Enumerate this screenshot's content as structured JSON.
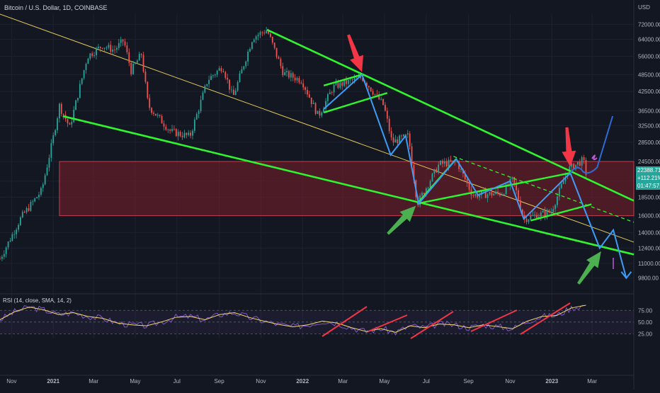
{
  "header": {
    "title": "Bitcoin / U.S. Dollar, 1D, COINBASE",
    "currency": "USD"
  },
  "price_tag": {
    "price": "22388.71",
    "change": "+112.21%",
    "countdown": "01:47:57"
  },
  "rsi_label": "RSI (14, close, SMA, 14, 2)",
  "colors": {
    "background": "#131722",
    "up": "#26a69a",
    "down": "#ef5350",
    "trend_green": "#2ef52e",
    "projection_blue": "#3d9cf5",
    "arrow_red": "#f23645",
    "arrow_green": "#4caf50",
    "zone": "#7d1f2a",
    "rsi": "#7e57c2",
    "rsi_ma": "#f5d76e"
  },
  "chart_data": [
    {
      "type": "candlestick",
      "title": "Bitcoin / U.S. Dollar, 1D, COINBASE",
      "y_scale": "log",
      "y_unit": "USD",
      "y_ticks": [
        72000,
        64000,
        56000,
        48500,
        42500,
        36500,
        32500,
        28500,
        24500,
        21000,
        18500,
        16000,
        14000,
        12400,
        11000,
        9800
      ],
      "x_ticks": [
        "Nov",
        "2021",
        "Mar",
        "May",
        "Jul",
        "Sep",
        "Nov",
        "2022",
        "Mar",
        "May",
        "Jul",
        "Sep",
        "Nov",
        "2023",
        "Mar"
      ],
      "x_range": [
        "2020-10-15",
        "2023-05-01"
      ],
      "y_range": [
        9000,
        78000
      ],
      "current_price": 22388.71,
      "price_path": [
        [
          "2020-10-15",
          11400
        ],
        [
          "2020-11-15",
          15800
        ],
        [
          "2020-12-15",
          19500
        ],
        [
          "2020-12-31",
          28900
        ],
        [
          "2021-01-10",
          38000
        ],
        [
          "2021-01-25",
          32000
        ],
        [
          "2021-02-20",
          56000
        ],
        [
          "2021-03-14",
          61000
        ],
        [
          "2021-03-31",
          58800
        ],
        [
          "2021-04-14",
          63500
        ],
        [
          "2021-04-25",
          50000
        ],
        [
          "2021-05-10",
          57000
        ],
        [
          "2021-05-20",
          38000
        ],
        [
          "2021-06-22",
          31000
        ],
        [
          "2021-07-20",
          29800
        ],
        [
          "2021-08-15",
          46500
        ],
        [
          "2021-09-06",
          51800
        ],
        [
          "2021-09-21",
          40500
        ],
        [
          "2021-10-20",
          65000
        ],
        [
          "2021-11-10",
          68900
        ],
        [
          "2021-12-04",
          49000
        ],
        [
          "2021-12-31",
          46300
        ],
        [
          "2022-01-24",
          35000
        ],
        [
          "2022-02-15",
          44000
        ],
        [
          "2022-03-29",
          47500
        ],
        [
          "2022-04-30",
          38000
        ],
        [
          "2022-05-12",
          28500
        ],
        [
          "2022-06-05",
          30000
        ],
        [
          "2022-06-18",
          17600
        ],
        [
          "2022-07-20",
          24000
        ],
        [
          "2022-08-15",
          24400
        ],
        [
          "2022-09-07",
          18800
        ],
        [
          "2022-10-20",
          19100
        ],
        [
          "2022-11-05",
          21300
        ],
        [
          "2022-11-21",
          15600
        ],
        [
          "2022-12-31",
          16550
        ],
        [
          "2023-01-25",
          23000
        ],
        [
          "2023-02-16",
          24800
        ],
        [
          "2023-02-20",
          22388.71
        ]
      ],
      "support_zone": {
        "from": 16000,
        "to": 24500
      },
      "annotations": {
        "downtrend_lines": [
          [
            [
              "2021-11-10",
              69000
            ],
            [
              "2023-05-01",
              18000
            ]
          ],
          [
            [
              "2021-01-15",
              35000
            ],
            [
              "2023-05-01",
              11800
            ]
          ]
        ],
        "long_diagonal": [
          [
            "2020-10-15",
            78000
          ],
          [
            "2023-05-01",
            13000
          ]
        ],
        "projection_path": [
          [
            "2022-02-01",
            37000
          ],
          [
            "2022-03-29",
            48500
          ],
          [
            "2022-05-10",
            25800
          ],
          [
            "2022-06-01",
            30000
          ],
          [
            "2022-06-20",
            17600
          ],
          [
            "2022-08-14",
            25000
          ],
          [
            "2022-09-15",
            18800
          ],
          [
            "2022-11-01",
            21000
          ],
          [
            "2022-11-21",
            15600
          ],
          [
            "2023-01-28",
            22388
          ],
          [
            "2023-03-12",
            12400
          ],
          [
            "2023-04-01",
            14300
          ],
          [
            "2023-04-20",
            9800
          ]
        ],
        "bullish_projection": [
          [
            "2023-01-28",
            22388
          ],
          [
            "2023-03-31",
            35000
          ]
        ],
        "red_arrows": [
          "2022-03-29",
          "2023-01-28"
        ],
        "green_arrows": [
          "2022-06-18",
          "2023-03-10"
        ]
      }
    },
    {
      "type": "line",
      "title": "RSI (14, close, SMA, 14, 2)",
      "y_ticks": [
        75,
        50,
        25
      ],
      "y_range": [
        15,
        95
      ],
      "series": [
        {
          "values": [
            55,
            72,
            82,
            76,
            66,
            70,
            62,
            58,
            48,
            44,
            42,
            50,
            60,
            62,
            55,
            66,
            70,
            60,
            52,
            45,
            40,
            44,
            52,
            48,
            38,
            30,
            36,
            28,
            42,
            38,
            46,
            44,
            38,
            44,
            40,
            36,
            52,
            62,
            64,
            80,
            86
          ]
        }
      ]
    }
  ]
}
